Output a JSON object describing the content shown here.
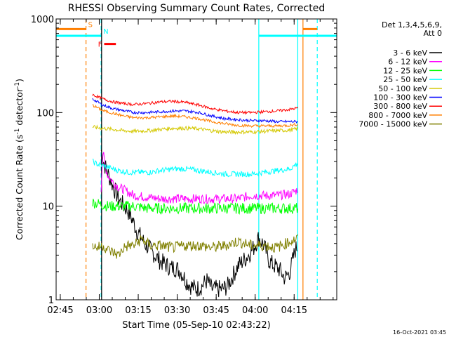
{
  "chart_data": {
    "type": "line",
    "title": "RHESSI Observing Summary Count Rates, Corrected",
    "xlabel": "Start Time (05-Sep-10 02:43:22)",
    "ylabel": "Corrected Count Rate (s⁻¹ detector⁻¹)",
    "ylabel_parts": {
      "main": "Corrected Count Rate (s",
      "exp1": "-1",
      "mid": " detector",
      "exp2": "-1",
      "end": ")"
    },
    "x_unit": "minutes after 02:43:22",
    "xlim": [
      0,
      108
    ],
    "ylim": [
      1,
      1000
    ],
    "y_scale": "log",
    "x_ticks": [
      {
        "label": "02:45",
        "x": 1.6
      },
      {
        "label": "03:00",
        "x": 16.6
      },
      {
        "label": "03:15",
        "x": 31.6
      },
      {
        "label": "03:30",
        "x": 46.6
      },
      {
        "label": "03:45",
        "x": 61.6
      },
      {
        "label": "04:00",
        "x": 76.6
      },
      {
        "label": "04:15",
        "x": 91.6
      }
    ],
    "y_ticks": [
      {
        "label": "1",
        "y": 1
      },
      {
        "label": "10",
        "y": 10
      },
      {
        "label": "100",
        "y": 100
      },
      {
        "label": "1000",
        "y": 1000
      }
    ],
    "grid": false,
    "legend_header": [
      "Det 1,3,4,5,6,9,",
      "Att 0"
    ],
    "legend_placement": "right",
    "date_stamp": "16-Oct-2021 03:45",
    "series": [
      {
        "name": "3 - 6 keV",
        "color": "#000000",
        "x": [
          17.3,
          18,
          19,
          20,
          21,
          22,
          23,
          24,
          25,
          26,
          27,
          28,
          29,
          30,
          31,
          32,
          33,
          34,
          36,
          38,
          40,
          42,
          44,
          46,
          48,
          50,
          52,
          54,
          56,
          58,
          60,
          62,
          64,
          66,
          68,
          70,
          72,
          74,
          76,
          78,
          80,
          82,
          84,
          86,
          88,
          90,
          92,
          93
        ],
        "y": [
          40,
          32,
          26,
          22,
          19,
          16,
          14,
          12,
          11,
          10,
          9.5,
          8.5,
          7.5,
          6.5,
          5.5,
          5,
          4.5,
          4,
          3.5,
          3,
          2.6,
          2.4,
          2.2,
          2.2,
          2,
          1.6,
          1.4,
          1.3,
          1.4,
          1.6,
          1.3,
          1.3,
          1.3,
          1.4,
          1.8,
          2.3,
          2.6,
          3.0,
          3.6,
          4.6,
          3.8,
          2.6,
          2.3,
          2.1,
          1.7,
          2.0,
          3.4,
          3.8
        ]
      },
      {
        "name": "6 - 12 keV",
        "color": "#ff00ff",
        "x": [
          17.3,
          18,
          19,
          20,
          22,
          24,
          26,
          28,
          30,
          35,
          40,
          45,
          50,
          55,
          60,
          65,
          70,
          75,
          80,
          85,
          90,
          93
        ],
        "y": [
          15,
          38,
          26,
          21,
          18,
          16,
          15,
          14,
          13,
          12.5,
          12,
          12,
          12,
          12,
          12,
          12,
          12,
          13,
          13,
          13,
          13.5,
          15
        ]
      },
      {
        "name": "12 - 25 keV",
        "color": "#00ff00",
        "x": [
          14,
          20,
          25,
          30,
          35,
          40,
          45,
          50,
          55,
          60,
          65,
          70,
          75,
          80,
          85,
          90,
          93
        ],
        "y": [
          11,
          10,
          10,
          10,
          9.5,
          9.5,
          9.5,
          9.5,
          9.5,
          9.5,
          9.5,
          9.5,
          9.5,
          9.5,
          9.5,
          9.5,
          9.5
        ]
      },
      {
        "name": "25 - 50 keV",
        "color": "#00ffff",
        "x": [
          14,
          16,
          18,
          20,
          24,
          28,
          32,
          36,
          40,
          45,
          50,
          55,
          60,
          65,
          70,
          75,
          80,
          85,
          90,
          93
        ],
        "y": [
          30,
          28,
          27,
          26,
          24,
          23,
          23,
          23,
          24,
          25,
          25,
          24,
          23,
          22,
          22,
          22,
          23,
          24,
          25,
          29
        ]
      },
      {
        "name": "50 - 100 keV",
        "color": "#d4c800",
        "x": [
          14,
          18,
          22,
          26,
          30,
          35,
          40,
          45,
          50,
          55,
          60,
          65,
          70,
          75,
          80,
          85,
          90,
          93
        ],
        "y": [
          70,
          68,
          66,
          64,
          63,
          64,
          66,
          68,
          68,
          67,
          64,
          62,
          62,
          62,
          63,
          64,
          65,
          67
        ]
      },
      {
        "name": "100 - 300 keV",
        "color": "#0000ff",
        "x": [
          14,
          18,
          22,
          26,
          30,
          35,
          40,
          45,
          50,
          55,
          60,
          65,
          70,
          75,
          80,
          85,
          90,
          93
        ],
        "y": [
          140,
          120,
          110,
          105,
          100,
          100,
          102,
          104,
          104,
          100,
          92,
          86,
          84,
          82,
          82,
          80,
          80,
          80
        ]
      },
      {
        "name": "300 - 800 keV",
        "color": "#ff0000",
        "x": [
          14,
          18,
          22,
          26,
          30,
          35,
          40,
          45,
          50,
          55,
          60,
          65,
          70,
          75,
          80,
          85,
          90,
          93
        ],
        "y": [
          155,
          140,
          130,
          125,
          122,
          125,
          130,
          132,
          128,
          120,
          110,
          104,
          100,
          100,
          102,
          104,
          108,
          112
        ]
      },
      {
        "name": "800 - 7000 keV",
        "color": "#ff7f00",
        "x": [
          14,
          18,
          22,
          26,
          30,
          35,
          40,
          45,
          50,
          55,
          60,
          65,
          70,
          75,
          80,
          85,
          90,
          93
        ],
        "y": [
          120,
          105,
          98,
          92,
          88,
          88,
          90,
          92,
          90,
          86,
          80,
          76,
          73,
          72,
          72,
          72,
          73,
          75
        ]
      },
      {
        "name": "7000 - 15000 keV",
        "color": "#808000",
        "x": [
          14,
          16,
          18,
          20,
          22,
          24,
          26,
          28,
          30,
          33,
          36,
          40,
          45,
          50,
          55,
          60,
          65,
          70,
          75,
          80,
          85,
          90,
          93
        ],
        "y": [
          3.8,
          3.6,
          3.8,
          3.4,
          3.2,
          3.0,
          3.6,
          3.8,
          3.8,
          4.5,
          3.8,
          3.8,
          3.6,
          3.8,
          3.8,
          3.6,
          3.8,
          4.2,
          3.8,
          3.8,
          3.6,
          4.2,
          4.5
        ]
      }
    ],
    "vertical_markers": [
      {
        "x": 11.5,
        "color": "#ff7f00",
        "style": "dashed"
      },
      {
        "x": 17.3,
        "color": "#00ffff",
        "style": "dashed"
      },
      {
        "x": 17.5,
        "color": "#000000",
        "style": "solid"
      },
      {
        "x": 78.0,
        "color": "#00ffff",
        "style": "solid"
      },
      {
        "x": 93.0,
        "color": "#00ffff",
        "style": "solid"
      },
      {
        "x": 95.0,
        "color": "#ff7f00",
        "style": "solid"
      },
      {
        "x": 100.5,
        "color": "#00ffff",
        "style": "dashed"
      }
    ],
    "flag_bars": [
      {
        "label": "S",
        "color": "#ff7f00",
        "segments": [
          [
            0,
            11.5
          ],
          [
            95,
            100.5
          ]
        ],
        "level": 780
      },
      {
        "label": "N",
        "color": "#00ffff",
        "segments": [
          [
            0,
            17.3
          ],
          [
            78,
            108
          ]
        ],
        "level": 660
      },
      {
        "label": "F",
        "color": "#ff0000",
        "segments": [
          [
            18.5,
            23
          ]
        ],
        "level": 540
      }
    ]
  }
}
